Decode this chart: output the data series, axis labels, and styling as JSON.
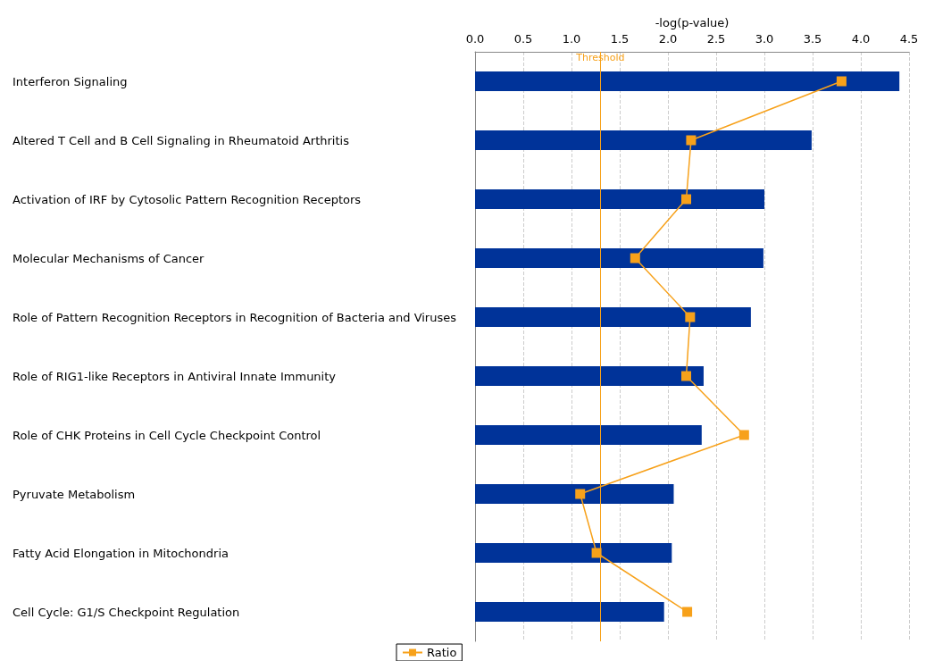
{
  "chart_data": {
    "type": "bar",
    "orientation": "horizontal",
    "xlabel": "-log(p-value)",
    "categories": [
      "Interferon Signaling",
      "Altered T Cell and B Cell Signaling in Rheumatoid Arthritis",
      "Activation of IRF by Cytosolic Pattern Recognition Receptors",
      "Molecular Mechanisms of Cancer",
      "Role of Pattern Recognition Receptors in Recognition of Bacteria and Viruses",
      "Role of RIG1-like Receptors in Antiviral Innate Immunity",
      "Role of CHK Proteins in Cell Cycle Checkpoint Control",
      "Pyruvate Metabolism",
      "Fatty Acid Elongation in Mitochondria",
      "Cell Cycle: G1/S Checkpoint Regulation"
    ],
    "series": [
      {
        "color": "#003399",
        "values": [
          4.4,
          3.49,
          3.0,
          2.99,
          2.86,
          2.37,
          2.35,
          2.06,
          2.04,
          1.96
        ]
      },
      {
        "type": "line",
        "name": "Ratio",
        "color": "#f7a11a",
        "values": [
          3.8,
          2.24,
          2.19,
          1.66,
          2.23,
          2.19,
          2.79,
          1.09,
          1.26,
          2.2
        ]
      }
    ],
    "xlim": [
      0,
      4.5
    ],
    "xticks": [
      {
        "value": 0,
        "label": "0.0"
      },
      {
        "value": 0.5,
        "label": "0.5"
      },
      {
        "value": 1,
        "label": "1.0"
      },
      {
        "value": 1.5,
        "label": "1.5"
      },
      {
        "value": 2,
        "label": "2.0"
      },
      {
        "value": 2.5,
        "label": "2.5"
      },
      {
        "value": 3,
        "label": "3.0"
      },
      {
        "value": 3.5,
        "label": "3.5"
      },
      {
        "value": 4,
        "label": "4.0"
      },
      {
        "value": 4.5,
        "label": "4.5"
      }
    ],
    "ref_lines": [
      {
        "axis": "x",
        "value": 1.3,
        "label": "Threshold",
        "color": "#f7a11a"
      }
    ],
    "grid": "x",
    "legend": "bottom",
    "marker": "square",
    "line_style": "solid"
  }
}
